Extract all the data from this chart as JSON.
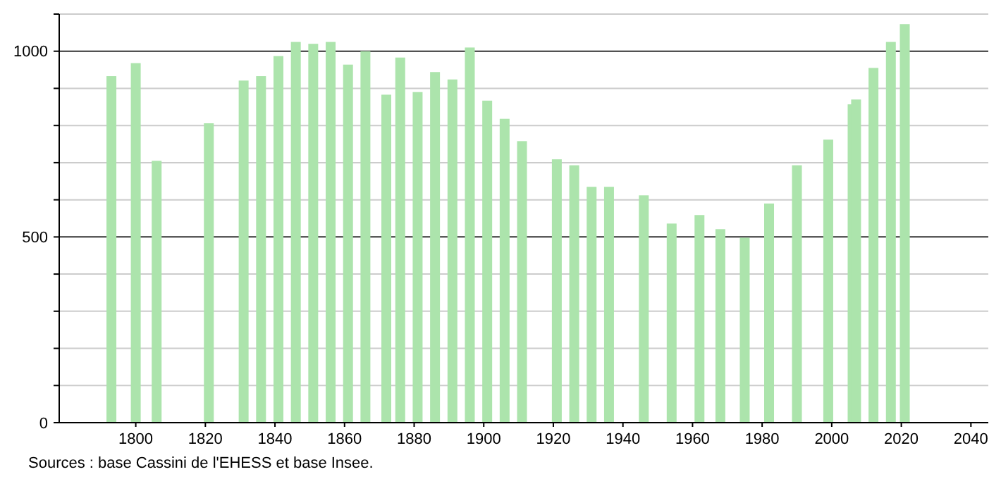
{
  "chart_data": {
    "type": "bar",
    "x": [
      1793,
      1800,
      1806,
      1821,
      1831,
      1836,
      1841,
      1846,
      1851,
      1856,
      1861,
      1866,
      1872,
      1876,
      1881,
      1886,
      1891,
      1896,
      1901,
      1906,
      1911,
      1921,
      1926,
      1931,
      1936,
      1946,
      1954,
      1962,
      1968,
      1975,
      1982,
      1990,
      1999,
      2006,
      2007,
      2012,
      2017,
      2021
    ],
    "values": [
      933,
      968,
      705,
      806,
      921,
      933,
      987,
      1025,
      1020,
      1025,
      964,
      1000,
      883,
      983,
      890,
      944,
      924,
      1010,
      867,
      818,
      758,
      709,
      693,
      635,
      635,
      612,
      536,
      559,
      521,
      498,
      590,
      693,
      762,
      857,
      870,
      955,
      1025,
      1073
    ],
    "color": "#ace4ac",
    "xlim": [
      1778,
      2045
    ],
    "xticks": [
      1800,
      1820,
      1840,
      1860,
      1880,
      1900,
      1920,
      1940,
      1960,
      1980,
      2000,
      2020,
      2040
    ],
    "ylim": [
      0,
      1100
    ],
    "yticks": [
      0,
      {
        "value": 100,
        "label": null
      },
      {
        "value": 200,
        "label": null
      },
      {
        "value": 300,
        "label": null
      },
      {
        "value": 400,
        "label": null
      },
      500,
      {
        "value": 600,
        "label": null
      },
      {
        "value": 700,
        "label": null
      },
      {
        "value": 800,
        "label": null
      },
      {
        "value": 900,
        "label": null
      },
      1000,
      {
        "value": 1100,
        "label": null
      }
    ],
    "grid": "y",
    "annotations": [
      "Sources : base Cassini de l'EHESS et base Insee."
    ]
  }
}
